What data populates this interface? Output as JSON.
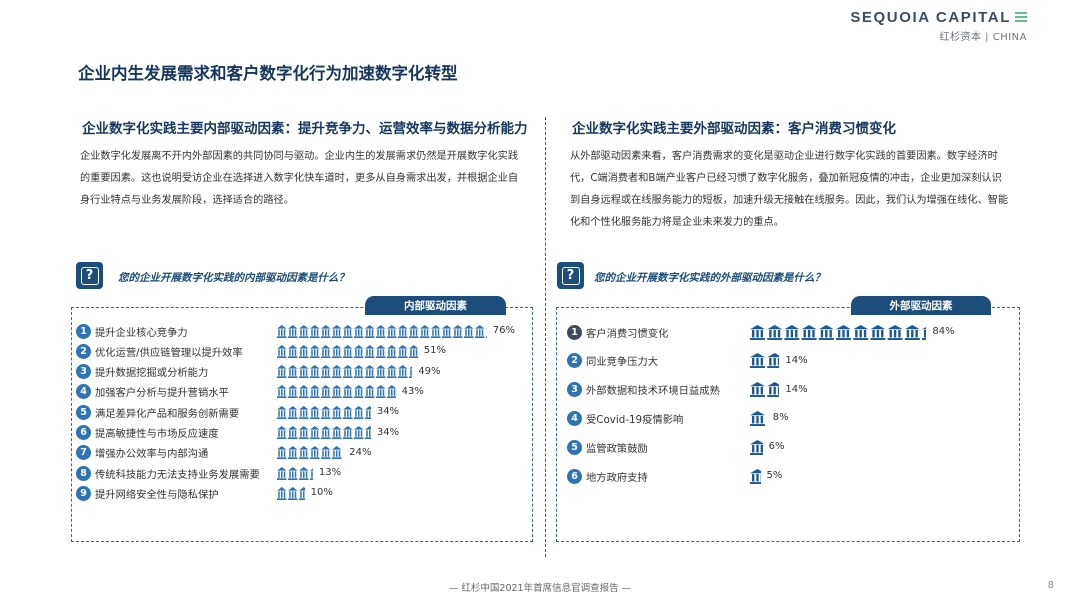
{
  "brand": {
    "name": "SEQUOIA CAPITAL",
    "sub": "红杉资本 | CHINA"
  },
  "page_title": "企业内生发展需求和客户数字化行为加速数字化转型",
  "left": {
    "title": "企业数字化实践主要内部驱动因素：提升竞争力、运营效率与数据分析能力",
    "paragraph": "企业数字化发展离不开内外部因素的共同协同与驱动。企业内生的发展需求仍然是开展数字化实践的重要因素。这也说明受访企业在选择进入数字化快车道时，更多从自身需求出发，并根据企业自身行业特点与业务发展阶段，选择适合的路径。",
    "question": "您的企业开展数字化实践的内部驱动因素是什么？",
    "tab": "内部驱动因素"
  },
  "right": {
    "title": "企业数字化实践主要外部驱动因素：客户消费习惯变化",
    "paragraph": "从外部驱动因素来看，客户消费需求的变化是驱动企业进行数字化实践的首要因素。数字经济时代，C端消费者和B端产业客户已经习惯了数字化服务，叠加新冠疫情的冲击，企业更加深刻认识到自身远程或在线服务能力的短板，加速升级无接触在线服务。因此，我们认为增强在线化、智能化和个性化服务能力将是企业未来发力的重点。",
    "question": "您的企业开展数字化实践的外部驱动因素是什么？",
    "tab": "外部驱动因素"
  },
  "chart_data": [
    {
      "type": "bar",
      "orientation": "horizontal",
      "title": "内部驱动因素",
      "categories": [
        "提升企业核心竞争力",
        "优化运营/供应链管理以提升效率",
        "提升数据挖掘或分析能力",
        "加强客户分析与提升营销水平",
        "满足差异化产品和服务创新需要",
        "提高敏捷性与市场反应速度",
        "增强办公效率与内部沟通",
        "传统科技能力无法支持业务发展需要",
        "提升网络安全性与隐私保护"
      ],
      "values": [
        76,
        51,
        49,
        43,
        34,
        34,
        24,
        13,
        10
      ],
      "labels": [
        "76%",
        "51%",
        "49%",
        "43%",
        "34%",
        "34%",
        "24%",
        "13%",
        "10%"
      ],
      "unit": "%",
      "colors": {
        "marker": "#2e74b5",
        "bar": "#2e74b5"
      },
      "legend": "none"
    },
    {
      "type": "bar",
      "orientation": "horizontal",
      "title": "外部驱动因素",
      "categories": [
        "客户消费习惯变化",
        "同业竞争压力大",
        "外部数据和技术环境日益成熟",
        "受Covid-19疫情影响",
        "监管政策鼓励",
        "地方政府支持"
      ],
      "values": [
        84,
        14,
        14,
        8,
        6,
        5
      ],
      "labels": [
        "84%",
        "14%",
        "14%",
        "8%",
        "6%",
        "5%"
      ],
      "unit": "%",
      "colors": {
        "marker_first": "#3d4b5c",
        "marker": "#2e74b5",
        "bar": "#1d5a94"
      },
      "legend": "none"
    }
  ],
  "footer": "— 红杉中国2021年首席信息官调查报告 —",
  "page_number": "8"
}
